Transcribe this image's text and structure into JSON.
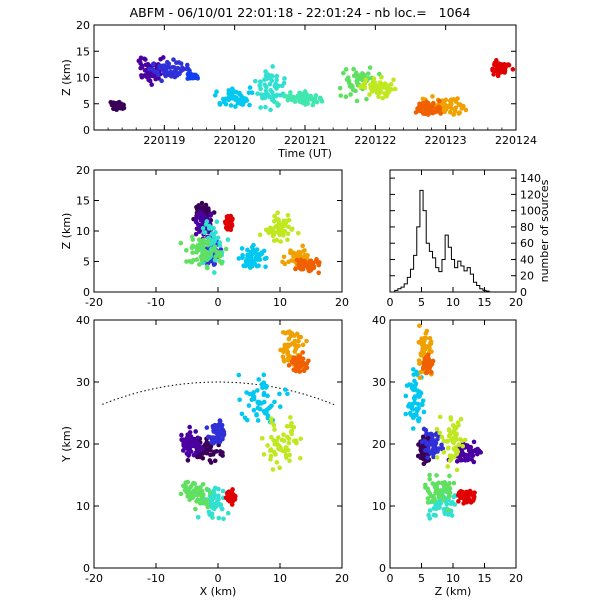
{
  "title": "ABFM - 06/10/01 22:01:18 - 22:01:24 - nb loc.=   1064",
  "chart_data": [
    {
      "id": "time_height",
      "type": "scatter",
      "xlabel": "Time (UT)",
      "ylabel": "Z (km)",
      "xlim": [
        0,
        6
      ],
      "ylim": [
        0,
        20
      ],
      "xticks": [
        1,
        2,
        3,
        4,
        5,
        6
      ],
      "xticklabels": [
        "220119",
        "220120",
        "220121",
        "220122",
        "220123",
        "220124"
      ],
      "yticks": [
        0,
        5,
        10,
        15,
        20
      ],
      "clusters": [
        {
          "color": "#3a0058",
          "x": [
            0.2,
            0.5
          ],
          "z": [
            3.6,
            5.6
          ]
        },
        {
          "color": "#4a00a0",
          "x": [
            0.5,
            1.1
          ],
          "z": [
            8,
            15
          ]
        },
        {
          "color": "#3030d8",
          "x": [
            0.7,
            1.5
          ],
          "z": [
            9,
            14
          ]
        },
        {
          "color": "#1040f0",
          "x": [
            1.3,
            1.5
          ],
          "z": [
            9.5,
            11
          ]
        },
        {
          "color": "#00c8f0",
          "x": [
            1.6,
            2.4
          ],
          "z": [
            3.5,
            9
          ]
        },
        {
          "color": "#30e0d0",
          "x": [
            2.2,
            2.8
          ],
          "z": [
            3,
            13
          ]
        },
        {
          "color": "#40e8b0",
          "x": [
            2.5,
            3.4
          ],
          "z": [
            4,
            8
          ]
        },
        {
          "color": "#60e060",
          "x": [
            3.4,
            4.1
          ],
          "z": [
            4.5,
            13.5
          ]
        },
        {
          "color": "#c0e820",
          "x": [
            3.7,
            4.4
          ],
          "z": [
            5.5,
            10.5
          ]
        },
        {
          "color": "#f0a000",
          "x": [
            4.6,
            5.4
          ],
          "z": [
            2.5,
            7
          ]
        },
        {
          "color": "#f06000",
          "x": [
            4.5,
            5.0
          ],
          "z": [
            2.5,
            6
          ]
        },
        {
          "color": "#e00000",
          "x": [
            5.6,
            6.0
          ],
          "z": [
            10,
            13.5
          ]
        }
      ]
    },
    {
      "id": "x_z",
      "type": "scatter",
      "xlabel": "",
      "ylabel": "Z (km)",
      "xlim": [
        -20,
        20
      ],
      "ylim": [
        0,
        20
      ],
      "xticks": [
        -20,
        -10,
        0,
        10,
        20
      ],
      "yticks": [
        0,
        5,
        10,
        15,
        20
      ],
      "clusters": [
        {
          "color": "#3a0058",
          "x": [
            -5,
            0
          ],
          "z": [
            11,
            15
          ]
        },
        {
          "color": "#4a00a0",
          "x": [
            -4,
            0
          ],
          "z": [
            8,
            14
          ]
        },
        {
          "color": "#3030d8",
          "x": [
            -3,
            1
          ],
          "z": [
            3,
            10
          ]
        },
        {
          "color": "#00c8f0",
          "x": [
            2,
            9
          ],
          "z": [
            3,
            8
          ]
        },
        {
          "color": "#30e0d0",
          "x": [
            -4,
            2
          ],
          "z": [
            2,
            13
          ]
        },
        {
          "color": "#60e060",
          "x": [
            -7,
            2
          ],
          "z": [
            3,
            10
          ]
        },
        {
          "color": "#c0e820",
          "x": [
            6,
            14
          ],
          "z": [
            7,
            14
          ]
        },
        {
          "color": "#f0a000",
          "x": [
            10,
            16
          ],
          "z": [
            3,
            8
          ]
        },
        {
          "color": "#f06000",
          "x": [
            12,
            17
          ],
          "z": [
            3,
            6
          ]
        },
        {
          "color": "#e00000",
          "x": [
            1,
            2.5
          ],
          "z": [
            10,
            13
          ]
        }
      ]
    },
    {
      "id": "z_histogram",
      "type": "line",
      "xlabel": "",
      "ylabel": "number of sources",
      "xlim": [
        0,
        20
      ],
      "ylim": [
        0,
        150
      ],
      "xticks": [
        0,
        5,
        10,
        15,
        20
      ],
      "yticks": [
        0,
        20,
        40,
        60,
        80,
        100,
        120,
        140
      ],
      "x": [
        1,
        1.5,
        2,
        2.5,
        3,
        3.5,
        4,
        4.5,
        5,
        5.5,
        6,
        6.5,
        7,
        7.5,
        8,
        8.5,
        9,
        9.5,
        10,
        10.5,
        11,
        11.5,
        12,
        12.5,
        13,
        13.5,
        14,
        14.5,
        15,
        15.5
      ],
      "y": [
        2,
        4,
        6,
        10,
        18,
        28,
        45,
        80,
        125,
        100,
        60,
        50,
        42,
        30,
        25,
        40,
        70,
        55,
        40,
        30,
        38,
        32,
        26,
        30,
        22,
        12,
        8,
        4,
        2,
        1
      ]
    },
    {
      "id": "x_y",
      "type": "scatter",
      "xlabel": "X (km)",
      "ylabel": "Y (km)",
      "xlim": [
        -20,
        20
      ],
      "ylim": [
        0,
        40
      ],
      "xticks": [
        -20,
        -10,
        0,
        10,
        20
      ],
      "yticks": [
        0,
        10,
        20,
        30,
        40
      ],
      "clusters": [
        {
          "color": "#3a0058",
          "x": [
            -6,
            3
          ],
          "y": [
            16,
            22
          ]
        },
        {
          "color": "#4a00a0",
          "x": [
            -7,
            -2
          ],
          "y": [
            17,
            23
          ]
        },
        {
          "color": "#3030d8",
          "x": [
            -2,
            2
          ],
          "y": [
            19,
            25
          ]
        },
        {
          "color": "#00c8f0",
          "x": [
            2,
            12
          ],
          "y": [
            21,
            33
          ]
        },
        {
          "color": "#30e0d0",
          "x": [
            -4,
            2
          ],
          "y": [
            7,
            14
          ]
        },
        {
          "color": "#60e060",
          "x": [
            -7,
            0
          ],
          "y": [
            9,
            15
          ]
        },
        {
          "color": "#c0e820",
          "x": [
            6,
            15
          ],
          "y": [
            14,
            27
          ]
        },
        {
          "color": "#f0a000",
          "x": [
            9,
            15
          ],
          "y": [
            31,
            40
          ]
        },
        {
          "color": "#f06000",
          "x": [
            11,
            15
          ],
          "y": [
            31,
            35
          ]
        },
        {
          "color": "#e00000",
          "x": [
            1,
            3
          ],
          "y": [
            10,
            13
          ]
        }
      ],
      "arc": {
        "center": [
          0,
          -20
        ],
        "radius": 50
      }
    },
    {
      "id": "z_y",
      "type": "scatter",
      "xlabel": "Z (km)",
      "ylabel": "",
      "xlim": [
        0,
        20
      ],
      "ylim": [
        0,
        40
      ],
      "xticks": [
        0,
        5,
        10,
        15,
        20
      ],
      "yticks": [
        0,
        10,
        20,
        30,
        40
      ],
      "clusters": [
        {
          "color": "#3a0058",
          "x": [
            4,
            7
          ],
          "y": [
            16,
            22
          ]
        },
        {
          "color": "#4a00a0",
          "x": [
            9,
            15
          ],
          "y": [
            16,
            21
          ]
        },
        {
          "color": "#3030d8",
          "x": [
            4,
            9
          ],
          "y": [
            17,
            23
          ]
        },
        {
          "color": "#00c8f0",
          "x": [
            2,
            6
          ],
          "y": [
            21,
            33
          ]
        },
        {
          "color": "#30e0d0",
          "x": [
            5,
            12
          ],
          "y": [
            7,
            14
          ]
        },
        {
          "color": "#60e060",
          "x": [
            4,
            12
          ],
          "y": [
            9,
            16
          ]
        },
        {
          "color": "#c0e820",
          "x": [
            7,
            13
          ],
          "y": [
            14,
            27
          ]
        },
        {
          "color": "#f0a000",
          "x": [
            4,
            7
          ],
          "y": [
            30,
            40
          ]
        },
        {
          "color": "#f06000",
          "x": [
            5,
            7
          ],
          "y": [
            31,
            35
          ]
        },
        {
          "color": "#e00000",
          "x": [
            10,
            14
          ],
          "y": [
            10,
            13
          ]
        }
      ]
    }
  ]
}
